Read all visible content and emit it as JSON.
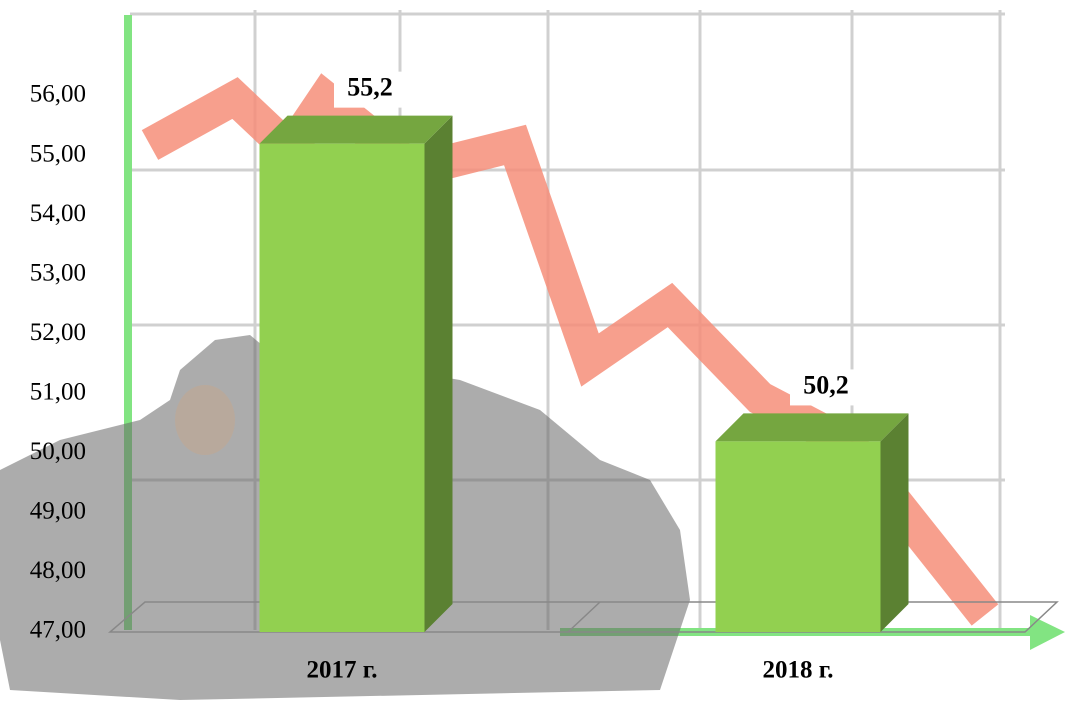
{
  "chart_data": {
    "type": "bar3d",
    "categories": [
      "2017 г.",
      "2018 г."
    ],
    "values": [
      55.2,
      50.2
    ],
    "value_labels": [
      "55,2",
      "50,2"
    ],
    "color": "#92d050",
    "ylim": [
      47,
      56
    ],
    "yticks": [
      {
        "value": 47,
        "label": "47,00"
      },
      {
        "value": 48,
        "label": "48,00"
      },
      {
        "value": 49,
        "label": "49,00"
      },
      {
        "value": 50,
        "label": "50,00"
      },
      {
        "value": 51,
        "label": "51,00"
      },
      {
        "value": 52,
        "label": "52,00"
      },
      {
        "value": 53,
        "label": "53,00"
      },
      {
        "value": 54,
        "label": "54,00"
      },
      {
        "value": 55,
        "label": "55,00"
      },
      {
        "value": 56,
        "label": "56,00"
      }
    ]
  }
}
